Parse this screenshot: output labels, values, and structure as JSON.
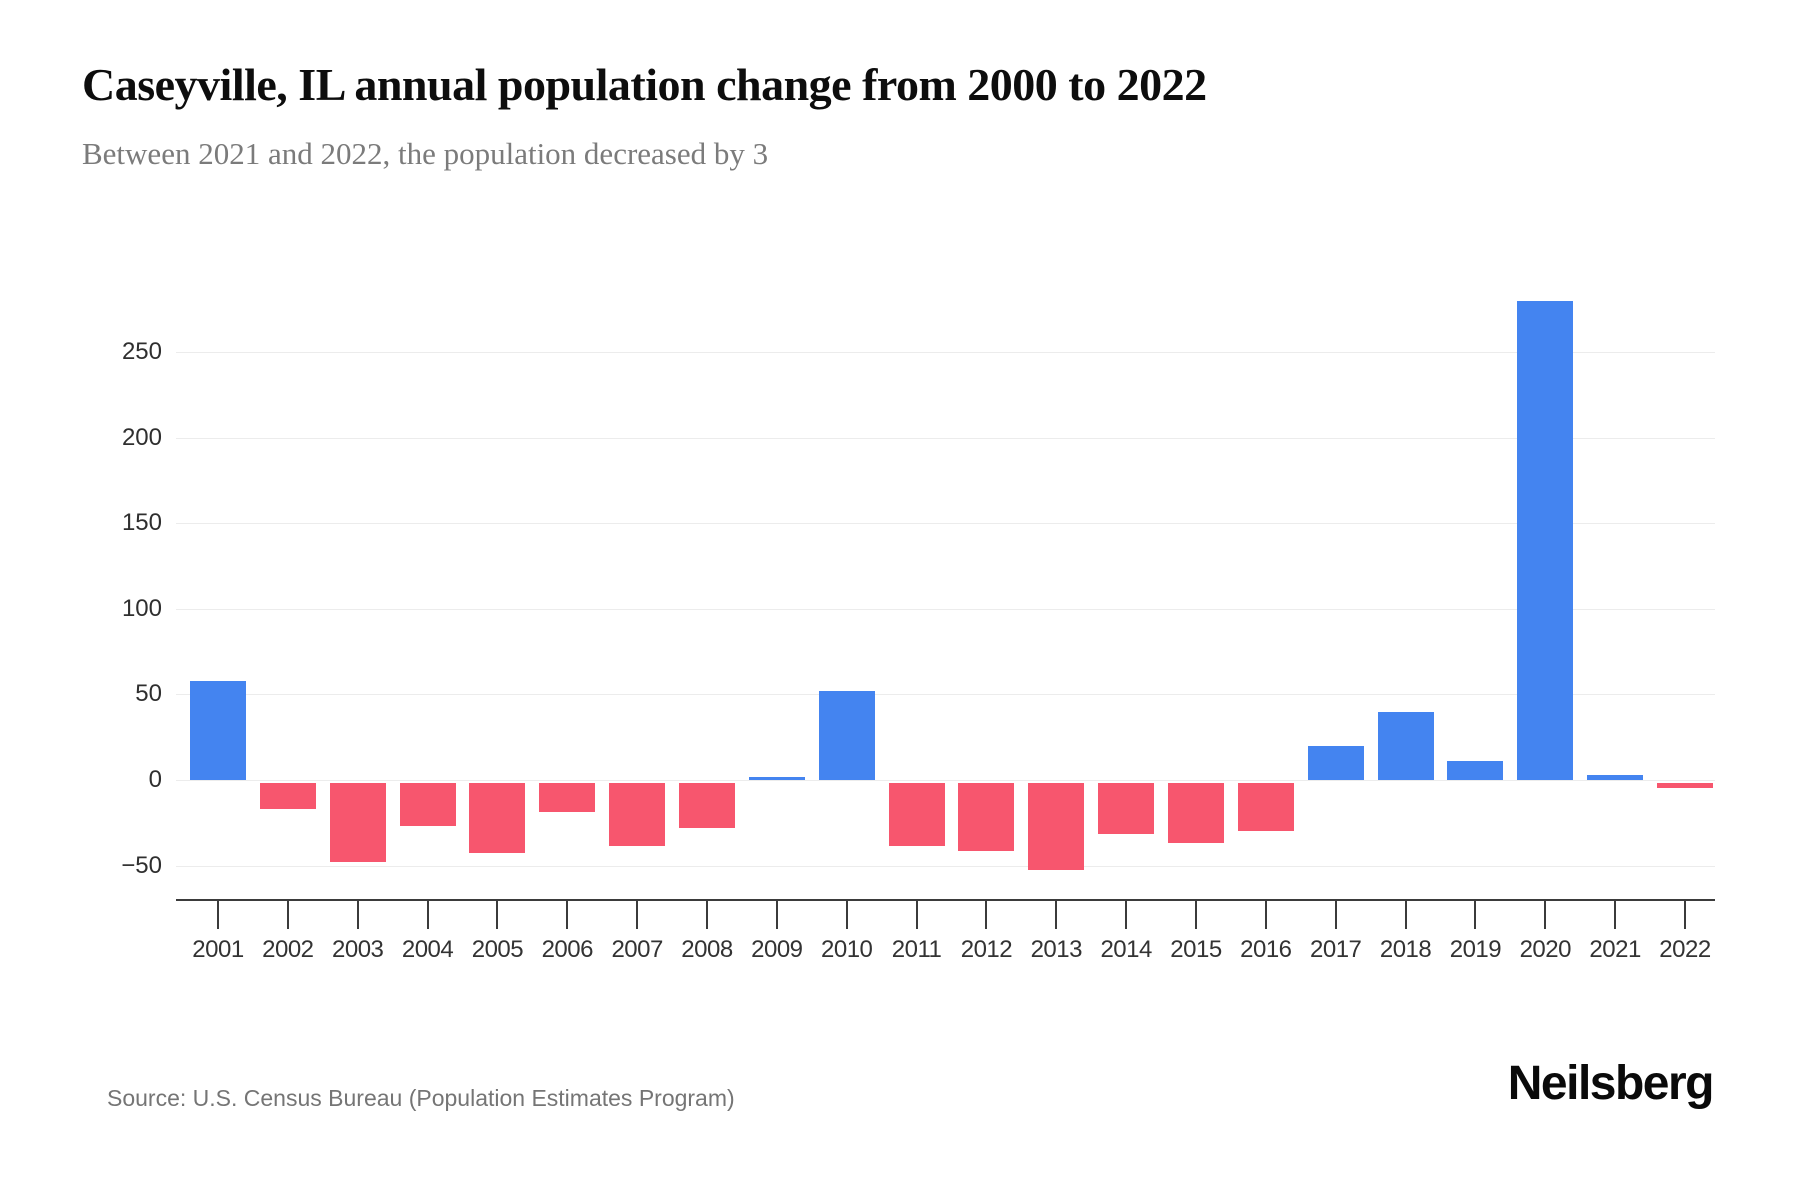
{
  "header": {
    "title": "Caseyville, IL annual population change from 2000 to 2022",
    "subtitle": "Between 2021 and 2022, the population decreased by 3"
  },
  "footer": {
    "source": "Source: U.S. Census Bureau (Population Estimates Program)",
    "brand": "Neilsberg"
  },
  "colors": {
    "positive": "#4484F0",
    "negative": "#F7566E",
    "gridline": "#ececec",
    "axis": "#3b3b3b",
    "title": "#0d0d0d",
    "subtitle": "#7b7b7b",
    "source": "#757575"
  },
  "chart_data": {
    "type": "bar",
    "title": "Caseyville, IL annual population change from 2000 to 2022",
    "subtitle": "Between 2021 and 2022, the population decreased by 3",
    "categories": [
      "2001",
      "2002",
      "2003",
      "2004",
      "2005",
      "2006",
      "2007",
      "2008",
      "2009",
      "2010",
      "2011",
      "2012",
      "2013",
      "2014",
      "2015",
      "2016",
      "2017",
      "2018",
      "2019",
      "2020",
      "2021",
      "2022"
    ],
    "values": [
      58,
      -15,
      -46,
      -25,
      -41,
      -17,
      -37,
      -26,
      2,
      52,
      -37,
      -40,
      -51,
      -30,
      -35,
      -28,
      20,
      40,
      11,
      280,
      3,
      -3
    ],
    "xlabel": "",
    "ylabel": "",
    "ylim": [
      -70,
      310
    ],
    "yticks": [
      -50,
      0,
      50,
      100,
      150,
      200,
      250
    ],
    "grid": "horizontal",
    "legend": "none",
    "positive_color": "#4484F0",
    "negative_color": "#F7566E"
  }
}
